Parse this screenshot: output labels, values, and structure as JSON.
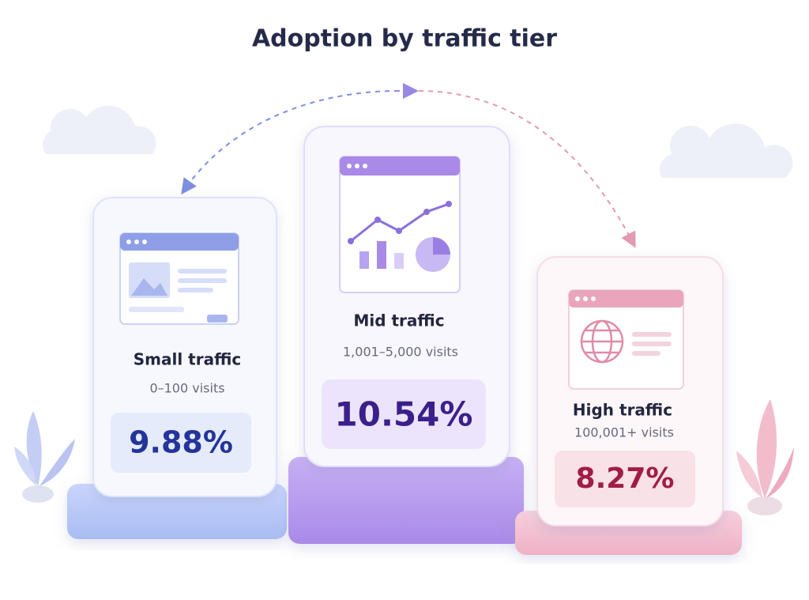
{
  "title": "Adoption by traffic tier",
  "tiers": [
    {
      "label": "Small traffic",
      "range": "0–100 visits",
      "value": "9.88%"
    },
    {
      "label": "Mid traffic",
      "range": "1,001–5,000 visits",
      "value": "10.54%"
    },
    {
      "label": "High traffic",
      "range": "100,001+ visits",
      "value": "8.27%"
    }
  ]
}
